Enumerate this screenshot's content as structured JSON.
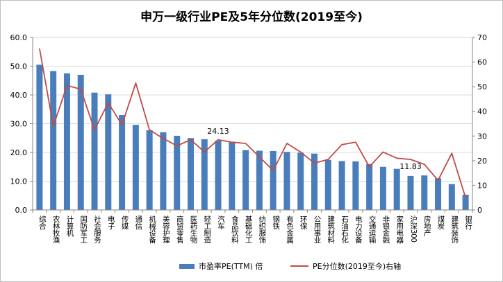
{
  "chart_data": {
    "type": "bar+line",
    "title": "申万一级行业PE及5年分位数(2019至今)",
    "categories": [
      "综合",
      "农林牧渔",
      "计算机",
      "国防军工",
      "社会服务",
      "电子",
      "传媒",
      "通信",
      "机械设备",
      "美容护理",
      "商贸零售",
      "医药生物",
      "轻工制造",
      "汽车",
      "食品饮料",
      "基础化工",
      "纺织服饰",
      "钢铁",
      "有色金属",
      "环保",
      "公用事业",
      "建筑材料",
      "石油石化",
      "电力设备",
      "交通运输",
      "非银金融",
      "家用电器",
      "沪深300",
      "房地产",
      "煤炭",
      "建筑装饰",
      "银行"
    ],
    "series": [
      {
        "name": "市盈率PE(TTM) 倍",
        "type": "bar",
        "axis": "left",
        "values": [
          50.5,
          48.3,
          47.5,
          47.0,
          40.8,
          40.2,
          33.0,
          29.6,
          27.7,
          27.0,
          25.8,
          25.0,
          24.6,
          24.13,
          23.5,
          20.8,
          20.6,
          20.5,
          20.2,
          19.9,
          19.6,
          17.4,
          17.0,
          16.9,
          16.0,
          15.0,
          14.3,
          11.83,
          12.0,
          11.0,
          9.0,
          5.3
        ]
      },
      {
        "name": "PE分位数(2019至今)右轴",
        "type": "line",
        "axis": "right",
        "values": [
          65.5,
          34.0,
          50.5,
          49.0,
          32.5,
          43.5,
          34.5,
          51.5,
          32.5,
          29.0,
          26.0,
          28.5,
          23.5,
          28.5,
          27.5,
          27.0,
          21.5,
          16.0,
          27.0,
          23.5,
          19.0,
          20.5,
          26.5,
          27.5,
          17.5,
          23.5,
          21.0,
          20.5,
          18.5,
          12.0,
          23.0,
          5.0
        ]
      }
    ],
    "y_left": {
      "min": 0,
      "max": 60,
      "ticks": [
        "0.0",
        "10.0",
        "20.0",
        "30.0",
        "40.0",
        "50.0",
        "60.0"
      ]
    },
    "y_right": {
      "min": 0,
      "max": 70,
      "ticks": [
        "0",
        "10",
        "20",
        "30",
        "40",
        "50",
        "60",
        "70"
      ]
    },
    "data_labels": [
      {
        "category_index": 13,
        "text": "24.13"
      },
      {
        "category_index": 27,
        "text": "11.83"
      }
    ],
    "colors": {
      "bar": "#4a7ebb",
      "line": "#be4b48",
      "grid": "#d9d9d9",
      "axis": "#868686"
    },
    "legend": {
      "position": "bottom",
      "items": [
        {
          "label": "市盈率PE(TTM) 倍",
          "kind": "bar"
        },
        {
          "label": "PE分位数(2019至今)右轴",
          "kind": "line"
        }
      ]
    }
  }
}
